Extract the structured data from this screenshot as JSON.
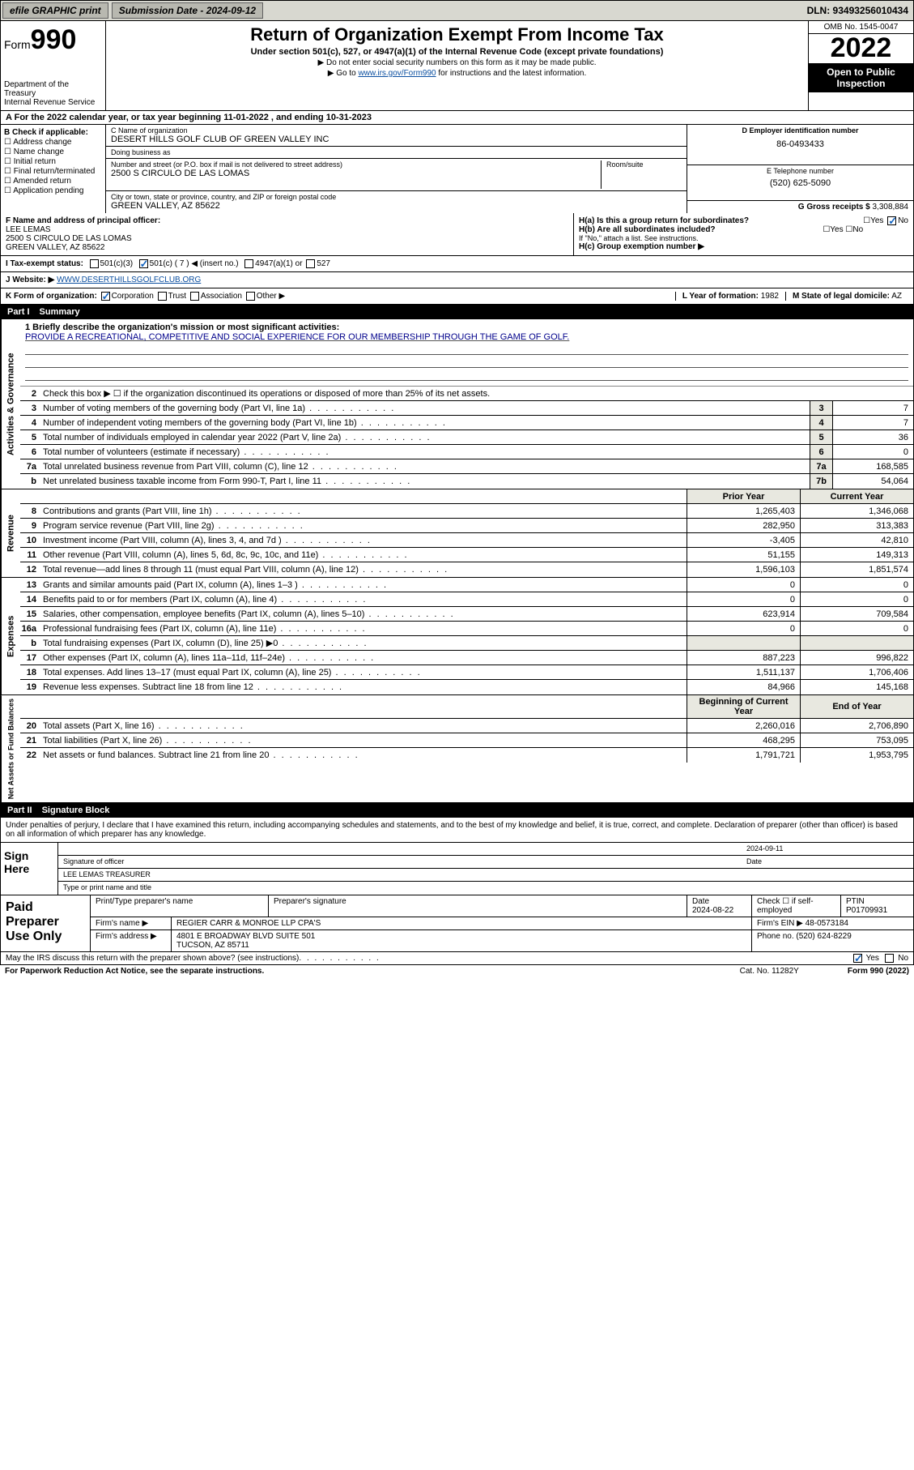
{
  "topbar": {
    "efile_label": "efile GRAPHIC print",
    "submission_label": "Submission Date - 2024-09-12",
    "dln": "DLN: 93493256010434"
  },
  "header": {
    "form_prefix": "Form",
    "form_num": "990",
    "title": "Return of Organization Exempt From Income Tax",
    "subtitle": "Under section 501(c), 527, or 4947(a)(1) of the Internal Revenue Code (except private foundations)",
    "note1": "▶ Do not enter social security numbers on this form as it may be made public.",
    "note2_pre": "▶ Go to ",
    "note2_link": "www.irs.gov/Form990",
    "note2_post": " for instructions and the latest information.",
    "dept": "Department of the Treasury",
    "irs": "Internal Revenue Service",
    "omb": "OMB No. 1545-0047",
    "year": "2022",
    "open": "Open to Public Inspection"
  },
  "a": {
    "text": "For the 2022 calendar year, or tax year beginning 11-01-2022   , and ending 10-31-2023"
  },
  "b": {
    "label": "B Check if applicable:",
    "items": [
      "Address change",
      "Name change",
      "Initial return",
      "Final return/terminated",
      "Amended return",
      "Application pending"
    ]
  },
  "c": {
    "name_lbl": "C Name of organization",
    "name": "DESERT HILLS GOLF CLUB OF GREEN VALLEY INC",
    "dba_lbl": "Doing business as",
    "dba": "",
    "street_lbl": "Number and street (or P.O. box if mail is not delivered to street address)",
    "street": "2500 S CIRCULO DE LAS LOMAS",
    "room_lbl": "Room/suite",
    "city_lbl": "City or town, state or province, country, and ZIP or foreign postal code",
    "city": "GREEN VALLEY, AZ  85622"
  },
  "d": {
    "lbl": "D Employer identification number",
    "val": "86-0493433"
  },
  "e": {
    "lbl": "E Telephone number",
    "val": "(520) 625-5090"
  },
  "g": {
    "lbl": "G Gross receipts $",
    "val": "3,308,884"
  },
  "f": {
    "lbl": "F Name and address of principal officer:",
    "name": "LEE LEMAS",
    "addr1": "2500 S CIRCULO DE LAS LOMAS",
    "addr2": "GREEN VALLEY, AZ  85622"
  },
  "h": {
    "a": "H(a)  Is this a group return for subordinates?",
    "b": "H(b)  Are all subordinates included?",
    "b_note": "If \"No,\" attach a list. See instructions.",
    "c": "H(c)  Group exemption number ▶"
  },
  "i": {
    "lbl": "I Tax-exempt status:",
    "opts": [
      "501(c)(3)",
      "501(c) ( 7 ) ◀ (insert no.)",
      "4947(a)(1) or",
      "527"
    ]
  },
  "j": {
    "lbl": "J Website: ▶",
    "val": "WWW.DESERTHILLSGOLFCLUB.ORG"
  },
  "k": {
    "lbl": "K Form of organization:",
    "opts": [
      "Corporation",
      "Trust",
      "Association",
      "Other ▶"
    ]
  },
  "l": {
    "lbl": "L Year of formation:",
    "val": "1982"
  },
  "m": {
    "lbl": "M State of legal domicile:",
    "val": "AZ"
  },
  "part1": {
    "label": "Part I",
    "title": "Summary"
  },
  "sections": {
    "gov": "Activities & Governance",
    "rev": "Revenue",
    "exp": "Expenses",
    "net": "Net Assets or Fund Balances"
  },
  "mission": {
    "lbl": "1  Briefly describe the organization's mission or most significant activities:",
    "text": "PROVIDE A RECREATIONAL, COMPETITIVE AND SOCIAL EXPERIENCE FOR OUR MEMBERSHIP THROUGH THE GAME OF GOLF."
  },
  "line2": "Check this box ▶ ☐ if the organization discontinued its operations or disposed of more than 25% of its net assets.",
  "gov_lines": [
    {
      "n": "3",
      "d": "Number of voting members of the governing body (Part VI, line 1a)",
      "box": "3",
      "v": "7"
    },
    {
      "n": "4",
      "d": "Number of independent voting members of the governing body (Part VI, line 1b)",
      "box": "4",
      "v": "7"
    },
    {
      "n": "5",
      "d": "Total number of individuals employed in calendar year 2022 (Part V, line 2a)",
      "box": "5",
      "v": "36"
    },
    {
      "n": "6",
      "d": "Total number of volunteers (estimate if necessary)",
      "box": "6",
      "v": "0"
    },
    {
      "n": "7a",
      "d": "Total unrelated business revenue from Part VIII, column (C), line 12",
      "box": "7a",
      "v": "168,585"
    },
    {
      "n": "b",
      "d": "Net unrelated business taxable income from Form 990-T, Part I, line 11",
      "box": "7b",
      "v": "54,064"
    }
  ],
  "year_cols": {
    "prior": "Prior Year",
    "current": "Current Year",
    "begin": "Beginning of Current Year",
    "end": "End of Year"
  },
  "rev_lines": [
    {
      "n": "8",
      "d": "Contributions and grants (Part VIII, line 1h)",
      "p": "1,265,403",
      "c": "1,346,068"
    },
    {
      "n": "9",
      "d": "Program service revenue (Part VIII, line 2g)",
      "p": "282,950",
      "c": "313,383"
    },
    {
      "n": "10",
      "d": "Investment income (Part VIII, column (A), lines 3, 4, and 7d )",
      "p": "-3,405",
      "c": "42,810"
    },
    {
      "n": "11",
      "d": "Other revenue (Part VIII, column (A), lines 5, 6d, 8c, 9c, 10c, and 11e)",
      "p": "51,155",
      "c": "149,313"
    },
    {
      "n": "12",
      "d": "Total revenue—add lines 8 through 11 (must equal Part VIII, column (A), line 12)",
      "p": "1,596,103",
      "c": "1,851,574"
    }
  ],
  "exp_lines": [
    {
      "n": "13",
      "d": "Grants and similar amounts paid (Part IX, column (A), lines 1–3 )",
      "p": "0",
      "c": "0"
    },
    {
      "n": "14",
      "d": "Benefits paid to or for members (Part IX, column (A), line 4)",
      "p": "0",
      "c": "0"
    },
    {
      "n": "15",
      "d": "Salaries, other compensation, employee benefits (Part IX, column (A), lines 5–10)",
      "p": "623,914",
      "c": "709,584"
    },
    {
      "n": "16a",
      "d": "Professional fundraising fees (Part IX, column (A), line 11e)",
      "p": "0",
      "c": "0"
    },
    {
      "n": "b",
      "d": "Total fundraising expenses (Part IX, column (D), line 25) ▶0",
      "p": "",
      "c": ""
    },
    {
      "n": "17",
      "d": "Other expenses (Part IX, column (A), lines 11a–11d, 11f–24e)",
      "p": "887,223",
      "c": "996,822"
    },
    {
      "n": "18",
      "d": "Total expenses. Add lines 13–17 (must equal Part IX, column (A), line 25)",
      "p": "1,511,137",
      "c": "1,706,406"
    },
    {
      "n": "19",
      "d": "Revenue less expenses. Subtract line 18 from line 12",
      "p": "84,966",
      "c": "145,168"
    }
  ],
  "net_lines": [
    {
      "n": "20",
      "d": "Total assets (Part X, line 16)",
      "p": "2,260,016",
      "c": "2,706,890"
    },
    {
      "n": "21",
      "d": "Total liabilities (Part X, line 26)",
      "p": "468,295",
      "c": "753,095"
    },
    {
      "n": "22",
      "d": "Net assets or fund balances. Subtract line 21 from line 20",
      "p": "1,791,721",
      "c": "1,953,795"
    }
  ],
  "part2": {
    "label": "Part II",
    "title": "Signature Block"
  },
  "sig": {
    "penalty": "Under penalties of perjury, I declare that I have examined this return, including accompanying schedules and statements, and to the best of my knowledge and belief, it is true, correct, and complete. Declaration of preparer (other than officer) is based on all information of which preparer has any knowledge.",
    "sign_here": "Sign Here",
    "sig_officer": "Signature of officer",
    "date_lbl": "Date",
    "sig_date": "2024-09-11",
    "officer": "LEE LEMAS  TREASURER",
    "name_lbl": "Type or print name and title"
  },
  "prep": {
    "label": "Paid Preparer Use Only",
    "h1": "Print/Type preparer's name",
    "h2": "Preparer's signature",
    "h3": "Date",
    "h4": "Check ☐ if self-employed",
    "h5": "PTIN",
    "date": "2024-08-22",
    "ptin": "P01709931",
    "firm_lbl": "Firm's name   ▶",
    "firm": "REGIER CARR & MONROE LLP CPA'S",
    "ein_lbl": "Firm's EIN ▶",
    "ein": "48-0573184",
    "addr_lbl": "Firm's address ▶",
    "addr1": "4801 E BROADWAY BLVD SUITE 501",
    "addr2": "TUCSON, AZ  85711",
    "phone_lbl": "Phone no.",
    "phone": "(520) 624-8229"
  },
  "footer": {
    "discuss": "May the IRS discuss this return with the preparer shown above? (see instructions)",
    "pra": "For Paperwork Reduction Act Notice, see the separate instructions.",
    "cat": "Cat. No. 11282Y",
    "form": "Form 990 (2022)"
  }
}
